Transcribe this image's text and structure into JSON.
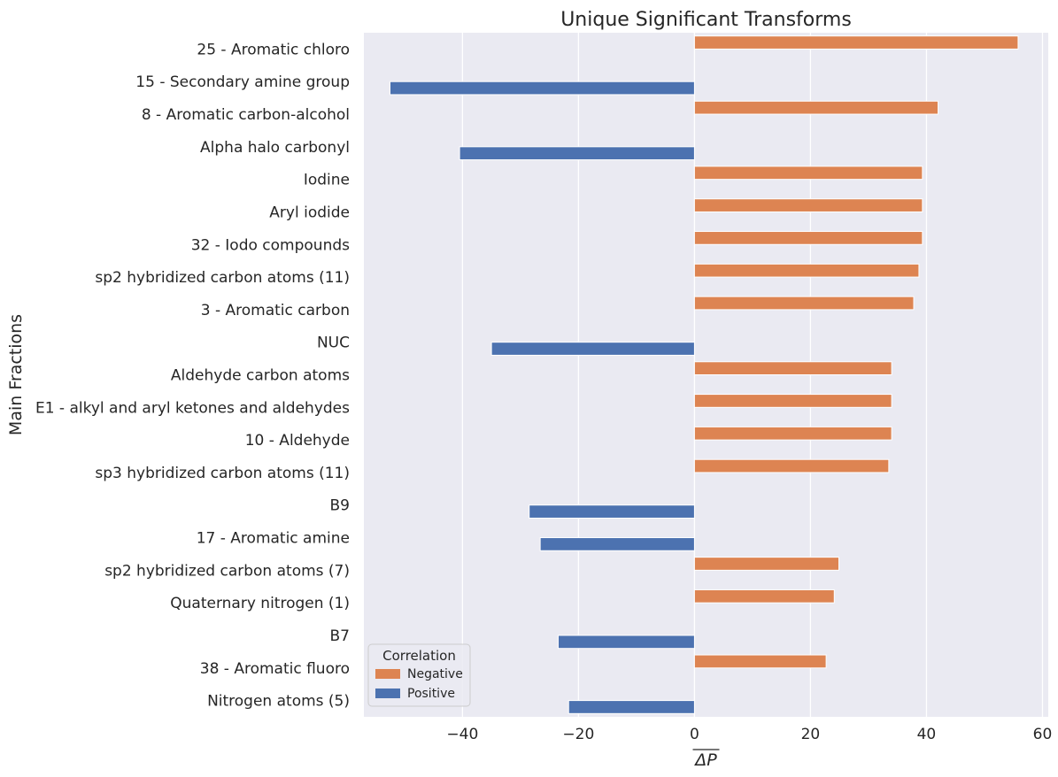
{
  "chart_data": {
    "type": "bar",
    "orientation": "horizontal",
    "title": "Unique Significant Transforms",
    "xlabel": "ΔP",
    "ylabel": "Main Fractions",
    "xlim": [
      -57,
      61
    ],
    "xticks": [
      -40,
      -20,
      0,
      20,
      40,
      60
    ],
    "grid": true,
    "legend": {
      "title": "Correlation",
      "placement": "lower-left"
    },
    "categories": [
      "25 - Aromatic chloro",
      "15 - Secondary amine group",
      "8 - Aromatic carbon-alcohol",
      "Alpha halo carbonyl",
      "Iodine",
      "Aryl iodide",
      "32 - Iodo compounds",
      "sp2 hybridized carbon atoms (11)",
      "3 - Aromatic carbon",
      "NUC",
      "Aldehyde carbon atoms",
      "E1 - alkyl and aryl ketones and aldehydes",
      "10 - Aldehyde",
      "sp3 hybridized carbon atoms (11)",
      "B9",
      "17 - Aromatic amine",
      "sp2 hybridized carbon atoms (7)",
      "Quaternary nitrogen (1)",
      "B7",
      "38 - Aromatic fluoro",
      "Nitrogen atoms (5)"
    ],
    "series": [
      {
        "name": "Negative",
        "color": "#dd8452",
        "values": [
          55.8,
          null,
          42.0,
          null,
          39.3,
          39.3,
          39.3,
          38.7,
          37.8,
          null,
          34.0,
          34.0,
          34.0,
          33.5,
          null,
          null,
          24.9,
          24.1,
          null,
          22.7,
          null
        ]
      },
      {
        "name": "Positive",
        "color": "#4c72b0",
        "values": [
          null,
          -52.5,
          null,
          -40.5,
          null,
          null,
          null,
          null,
          null,
          -35.0,
          null,
          null,
          null,
          null,
          -28.5,
          -26.6,
          null,
          null,
          -23.5,
          null,
          -21.7
        ]
      }
    ]
  }
}
